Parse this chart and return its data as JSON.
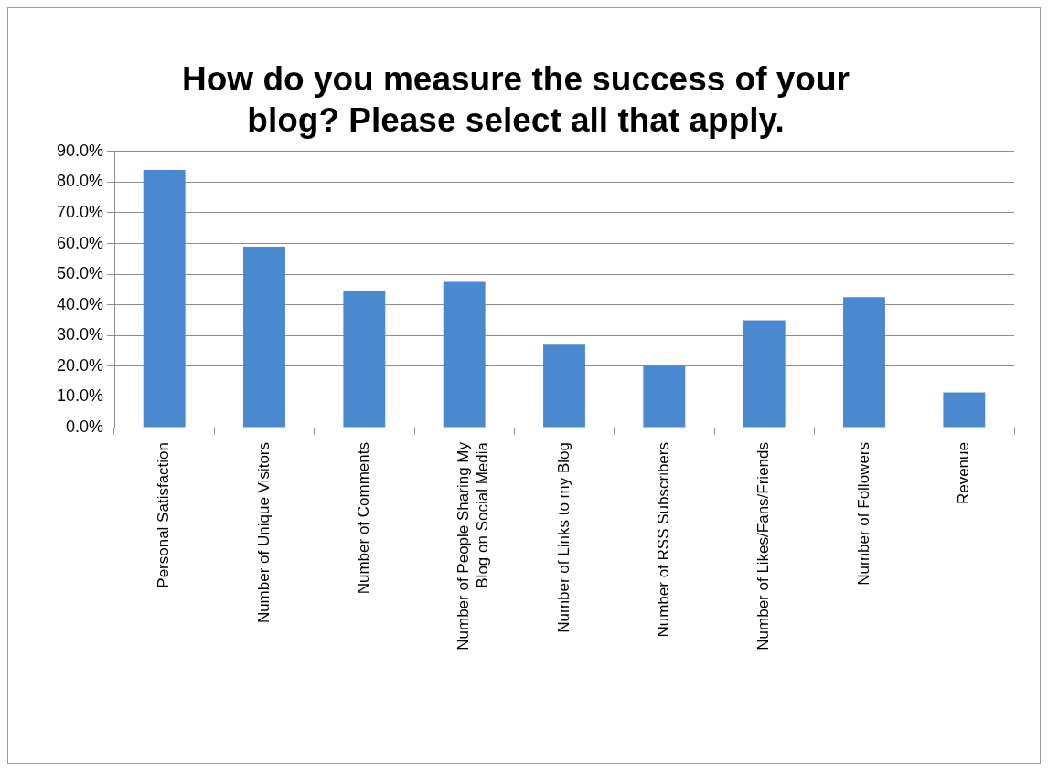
{
  "chart_data": {
    "type": "bar",
    "title": "How do you measure the success of your blog? Please select all that apply.",
    "categories": [
      "Personal Satisfaction",
      "Number of Unique Visitors",
      "Number of Comments",
      "Number of People Sharing My Blog on Social Media",
      "Number of Links to my Blog",
      "Number of RSS Subscribers",
      "Number of Likes/Fans/Friends",
      "Number of Followers",
      "Revenue"
    ],
    "values": [
      84,
      59,
      44.5,
      47.5,
      27,
      20,
      35,
      42.5,
      11.5
    ],
    "color": "#4a89d0",
    "ylim": [
      0,
      90
    ],
    "yticks": [
      {
        "value": 0,
        "label": "0.0%"
      },
      {
        "value": 10,
        "label": "10.0%"
      },
      {
        "value": 20,
        "label": "20.0%"
      },
      {
        "value": 30,
        "label": "30.0%"
      },
      {
        "value": 40,
        "label": "40.0%"
      },
      {
        "value": 50,
        "label": "50.0%"
      },
      {
        "value": 60,
        "label": "60.0%"
      },
      {
        "value": 70,
        "label": "70.0%"
      },
      {
        "value": 80,
        "label": "80.0%"
      },
      {
        "value": 90,
        "label": "90.0%"
      }
    ],
    "grid": "y"
  }
}
